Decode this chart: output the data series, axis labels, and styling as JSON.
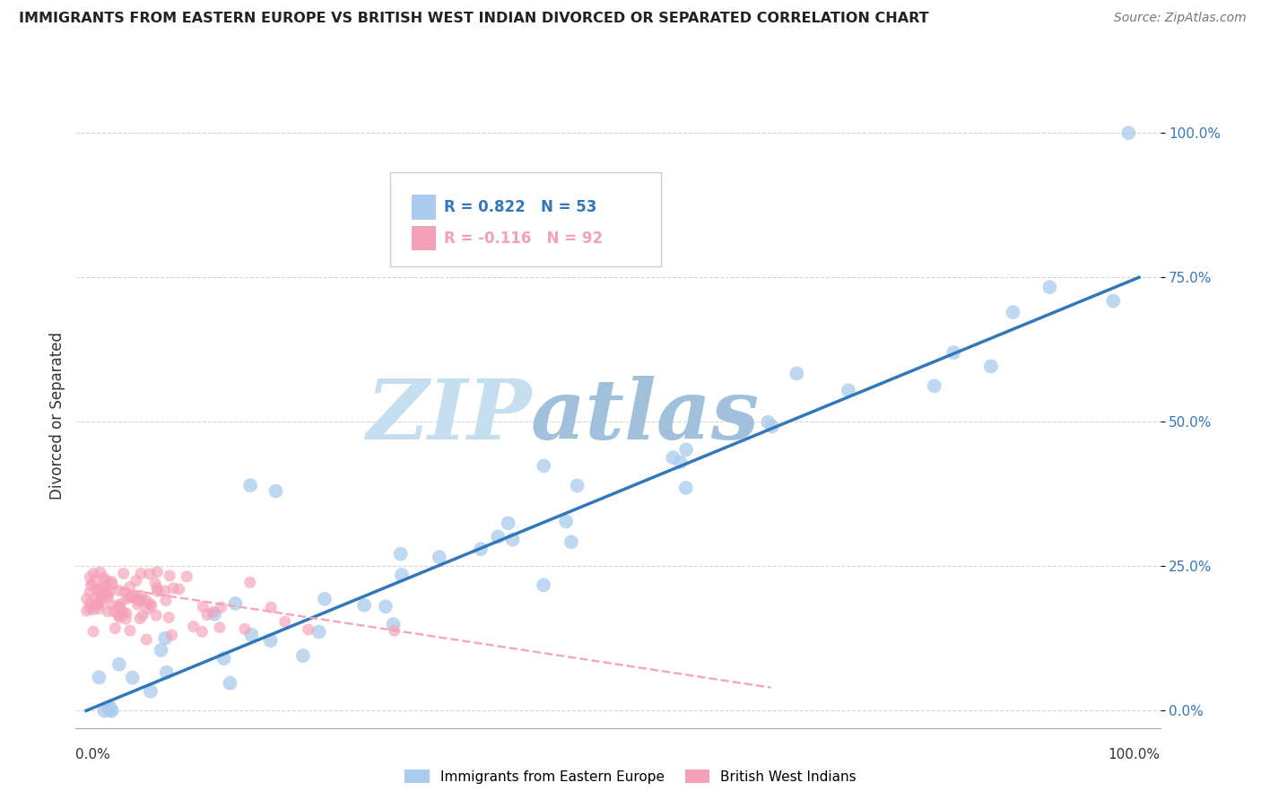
{
  "title": "IMMIGRANTS FROM EASTERN EUROPE VS BRITISH WEST INDIAN DIVORCED OR SEPARATED CORRELATION CHART",
  "source": "Source: ZipAtlas.com",
  "ylabel": "Divorced or Separated",
  "xlim": [
    0,
    1
  ],
  "ylim": [
    0,
    1
  ],
  "ytick_values": [
    0.0,
    0.25,
    0.5,
    0.75,
    1.0
  ],
  "blue_R": 0.822,
  "blue_N": 53,
  "pink_R": -0.116,
  "pink_N": 92,
  "blue_color": "#aaccee",
  "pink_color": "#f4a0b8",
  "blue_line_color": "#3377bb",
  "pink_line_color": "#f4a0b8",
  "legend_label_blue": "Immigrants from Eastern Europe",
  "legend_label_pink": "British West Indians",
  "blue_line_x0": 0.0,
  "blue_line_y0": 0.0,
  "blue_line_x1": 1.0,
  "blue_line_y1": 0.75,
  "pink_line_x0": 0.0,
  "pink_line_y0": 0.22,
  "pink_line_x1": 0.65,
  "pink_line_y1": 0.04,
  "grid_color": "#cccccc",
  "background_color": "#ffffff",
  "watermark_zip_color": "#c8ddf0",
  "watermark_atlas_color": "#a8c8e8"
}
